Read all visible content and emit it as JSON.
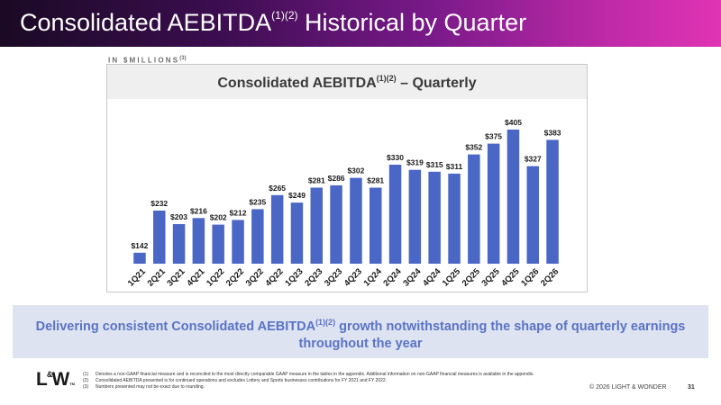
{
  "header": {
    "title_main": "Consolidated AEBITDA",
    "title_sup": "(1)(2)",
    "title_rest": " Historical by Quarter"
  },
  "units": {
    "label": "IN $MILLIONS",
    "sup": "(3)"
  },
  "colors": {
    "bar": "#4b67c6",
    "label": "#1a1a1a",
    "banner_text": "#5b73c4",
    "banner_bg": "#dde3f1"
  },
  "chart_data": {
    "type": "bar",
    "title_main": "Consolidated AEBITDA",
    "title_sup": "(1)(2)",
    "title_rest": " – Quarterly",
    "categories": [
      "1Q21",
      "2Q21",
      "3Q21",
      "4Q21",
      "1Q22",
      "2Q22",
      "3Q22",
      "4Q22",
      "1Q23",
      "2Q23",
      "3Q23",
      "4Q23",
      "1Q24",
      "2Q24",
      "3Q24",
      "4Q24",
      "1Q25",
      "2Q25",
      "3Q25",
      "4Q25",
      "1Q26",
      "2Q26"
    ],
    "values": [
      142,
      232,
      203,
      216,
      202,
      212,
      235,
      265,
      249,
      281,
      286,
      302,
      281,
      330,
      319,
      315,
      311,
      352,
      375,
      405,
      327,
      383
    ],
    "data_labels": [
      "$142",
      "$232",
      "$203",
      "$216",
      "$202",
      "$212",
      "$235",
      "$265",
      "$249",
      "$281",
      "$286",
      "$302",
      "$281",
      "$330",
      "$319",
      "$315",
      "$311",
      "$352",
      "$375",
      "$405",
      "$327",
      "$383"
    ],
    "ylim": [
      130,
      405
    ],
    "grid": false,
    "legend": "none"
  },
  "banner": {
    "text_main": "Delivering consistent Consolidated AEBITDA",
    "text_sup": "(1)(2)",
    "text_rest": " growth notwithstanding the shape of quarterly earnings throughout the year"
  },
  "footer": {
    "logo_left": "L",
    "logo_amp": "&",
    "logo_right": "W",
    "logo_tm": "TM",
    "footnotes": [
      {
        "num": "(1)",
        "text": "Denotes a non-GAAP financial measure and is reconciled to the most directly comparable GAAP measure in the tables in the appendix. Additional information on non-GAAP financial measures is available in the appendix."
      },
      {
        "num": "(2)",
        "text": "Consolidated AEBITDA presented is for continued operations and excludes Lottery and Sports businesses contributions for FY 2021 and FY 2022."
      },
      {
        "num": "(3)",
        "text": "Numbers presented may not be exact due to rounding."
      }
    ],
    "copyright": "© 2026 LIGHT & WONDER",
    "page_number": "31"
  }
}
